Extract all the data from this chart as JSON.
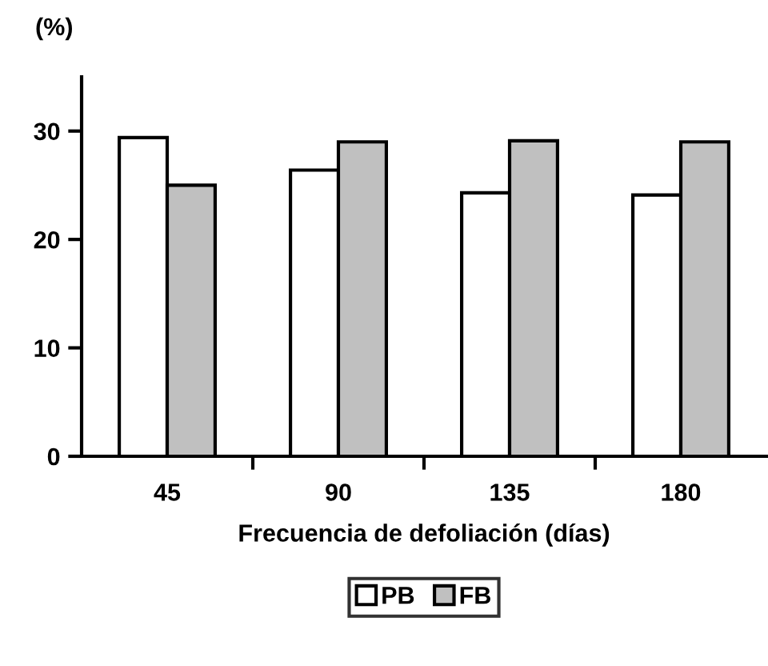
{
  "chart_data": {
    "type": "bar",
    "ylabel": "(%)",
    "xlabel": "Frecuencia de defoliación (días)",
    "categories": [
      "45",
      "90",
      "135",
      "180"
    ],
    "series": [
      {
        "name": "PB",
        "color": "#ffffff",
        "values": [
          29.4,
          26.4,
          24.3,
          24.1
        ]
      },
      {
        "name": "FB",
        "color": "#c0c0c0",
        "values": [
          25.0,
          29.0,
          29.1,
          29.0
        ]
      }
    ],
    "ylim": [
      0,
      35
    ],
    "yticks": [
      0,
      10,
      20,
      30
    ],
    "grid": false,
    "legend": "bottom"
  }
}
